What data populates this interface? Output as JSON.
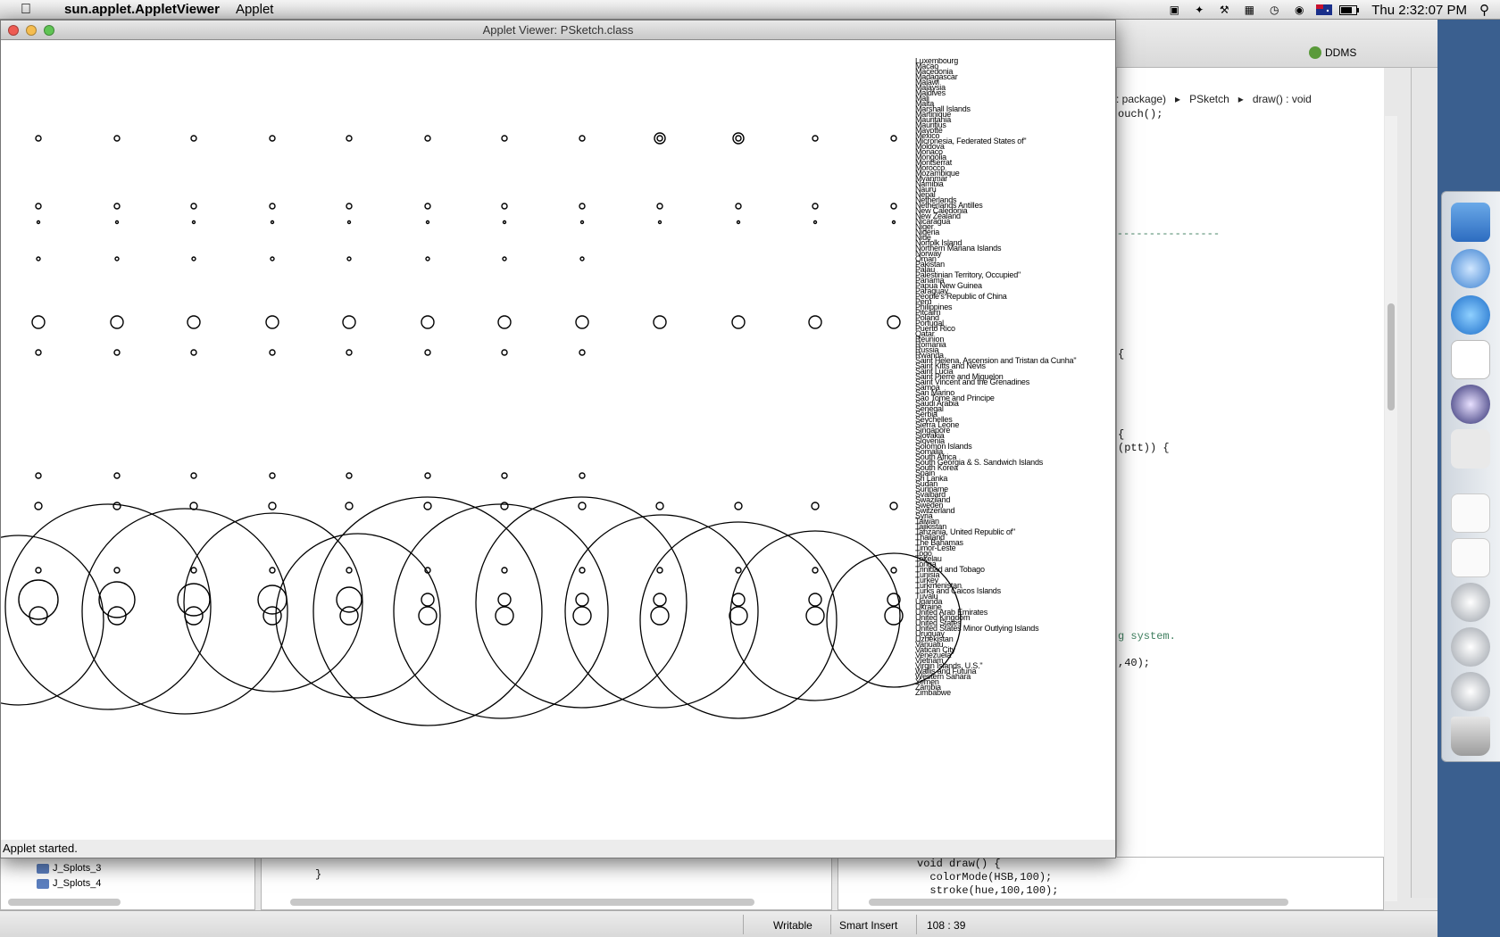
{
  "menubar": {
    "app_name": "sun.applet.AppletViewer",
    "menu_applet": "Applet",
    "clock": "Thu 2:32:07 PM"
  },
  "window": {
    "title": "Applet Viewer: PSketch.class",
    "status": "Applet started."
  },
  "countries": [
    "Luxembourg",
    "Macao",
    "Macedonia",
    "Madagascar",
    "Malawi",
    "Malaysia",
    "Maldives",
    "Mali",
    "Malta",
    "Marshall Islands",
    "Martinique",
    "Mauritania",
    "Mauritius",
    "Mayotte",
    "Mexico",
    "Micronesia, Federated States of\"",
    "Moldova",
    "Monaco",
    "Mongolia",
    "Montserrat",
    "Morocco",
    "Mozambique",
    "Myanmar",
    "Namibia",
    "Nauru",
    "Nepal",
    "Netherlands",
    "Netherlands Antilles",
    "New Caledonia",
    "New Zealand",
    "Nicaragua",
    "Niger",
    "Nigeria",
    "Niue",
    "Norfolk Island",
    "Northern Mariana Islands",
    "Norway",
    "Oman",
    "Pakistan",
    "Palau",
    "Palestinian Territory, Occupied\"",
    "Panama",
    "Papua New Guinea",
    "Paraguay",
    "People's Republic of China",
    "Peru",
    "Philippines",
    "Pitcairn",
    "Poland",
    "Portugal",
    "Puerto Rico",
    "Qatar",
    "Reunion",
    "Romania",
    "Russia",
    "Rwanda",
    "Saint Helena, Ascension and Tristan da Cunha\"",
    "Saint Kitts and Nevis",
    "Saint Lucia",
    "Saint Pierre and Miquelon",
    "Saint Vincent and the Grenadines",
    "Samoa",
    "San Marino",
    "Sao Tome and Principe",
    "Saudi Arabia",
    "Senegal",
    "Serbia",
    "Seychelles",
    "Sierra Leone",
    "Singapore",
    "Slovakia",
    "Slovenia",
    "Solomon Islands",
    "Somalia",
    "South Africa",
    "South Georgia & S. Sandwich Islands",
    "South Korea",
    "Spain",
    "Sri Lanka",
    "Sudan",
    "Suriname",
    "Svalbard",
    "Swaziland",
    "Sweden",
    "Switzerland",
    "Syria",
    "Taiwan",
    "Tajikistan",
    "Tanzania, United Republic of\"",
    "Thailand",
    "The Bahamas",
    "Timor-Leste",
    "Togo",
    "Tokelau",
    "Tonga",
    "Trinidad and Tobago",
    "Tunisia",
    "Turkey",
    "Turkmenistan",
    "Turks and Caicos Islands",
    "Tuvalu",
    "Uganda",
    "Ukraine",
    "United Arab Emirates",
    "United Kingdom",
    "United States",
    "United States Minor Outlying Islands",
    "Uruguay",
    "Uzbekistan",
    "Vanuatu",
    "Vatican City",
    "Venezuela",
    "Vietnam",
    "Virgin Islands, U.S.\"",
    "Wallis and Futuna",
    "Western Sahara",
    "Yemen",
    "Zambia",
    "Zimbabwe"
  ],
  "eclipse": {
    "ddms_label": "DDMS",
    "breadcrumb": [
      ": package)",
      "PSketch",
      "draw() : void"
    ],
    "code_lines": [
      {
        "text": "ouch();",
        "comment": false
      },
      {
        "text": "--------------------",
        "comment": true
      },
      {
        "text": "{",
        "comment": false
      },
      {
        "text": "{",
        "comment": false
      },
      {
        "text": "(ptt)) {",
        "comment": false
      },
      {
        "text": "g system.",
        "comment": true
      },
      {
        "text": ",40);",
        "comment": false
      }
    ],
    "bottom_code": [
      "void draw() {",
      "  colorMode(HSB,100);",
      "  stroke(hue,100,100);"
    ],
    "bottom_brace": "}",
    "packages": [
      "J_Splots_3",
      "J_Splots_4"
    ],
    "status": {
      "mode": "Writable",
      "insert": "Smart Insert",
      "position": "108 : 39"
    }
  },
  "colors": {
    "close": "#ee5b52",
    "minimize": "#f5bd4f",
    "zoom": "#5fc454"
  },
  "icons": {
    "apple": "apple-logo-icon",
    "wifi": "wifi-icon",
    "battery": "battery-icon",
    "search": "spotlight-search-icon"
  }
}
